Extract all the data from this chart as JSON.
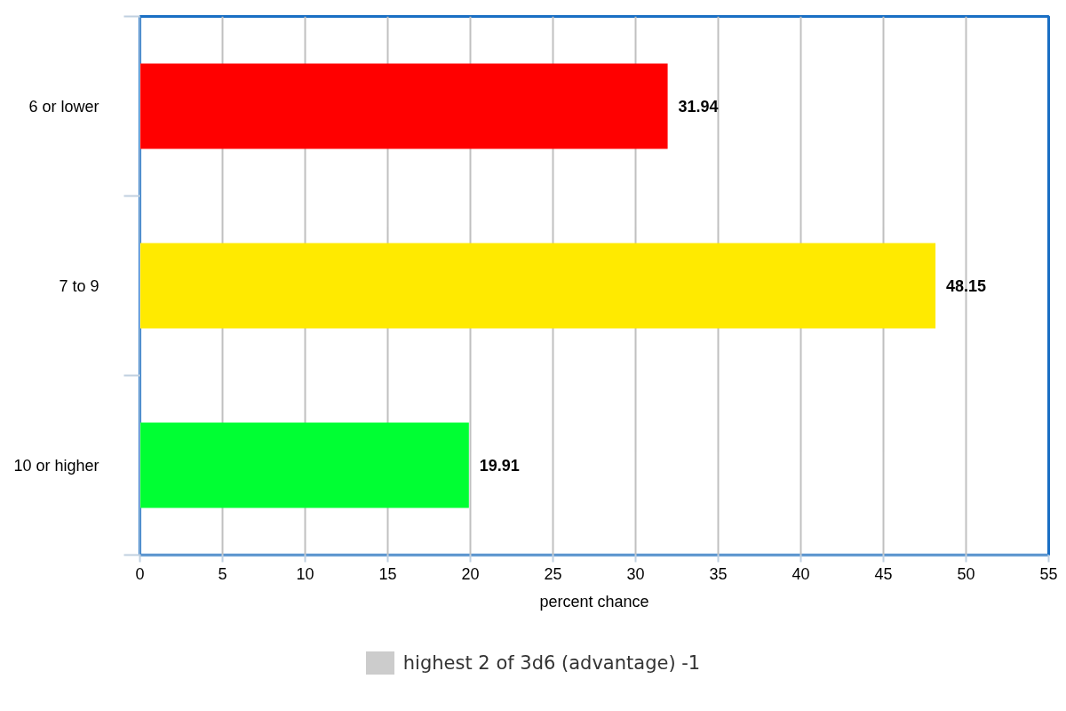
{
  "chart_data": {
    "type": "bar",
    "orientation": "horizontal",
    "categories": [
      "6 or lower",
      "7 to 9",
      "10 or higher"
    ],
    "series": [
      {
        "name": "highest 2 of 3d6 (advantage) -1",
        "color": "#cccccc",
        "colors": [
          "#ff0000",
          "#ffea00",
          "#00ff33"
        ],
        "values": [
          31.94,
          48.15,
          19.91
        ]
      }
    ],
    "xlabel": "percent chance",
    "xlim": [
      0,
      55
    ],
    "xticks": [
      0,
      5,
      10,
      15,
      20,
      25,
      30,
      35,
      40,
      45,
      50,
      55
    ],
    "grid": "x",
    "legend": "bottom",
    "data_labels": true
  }
}
